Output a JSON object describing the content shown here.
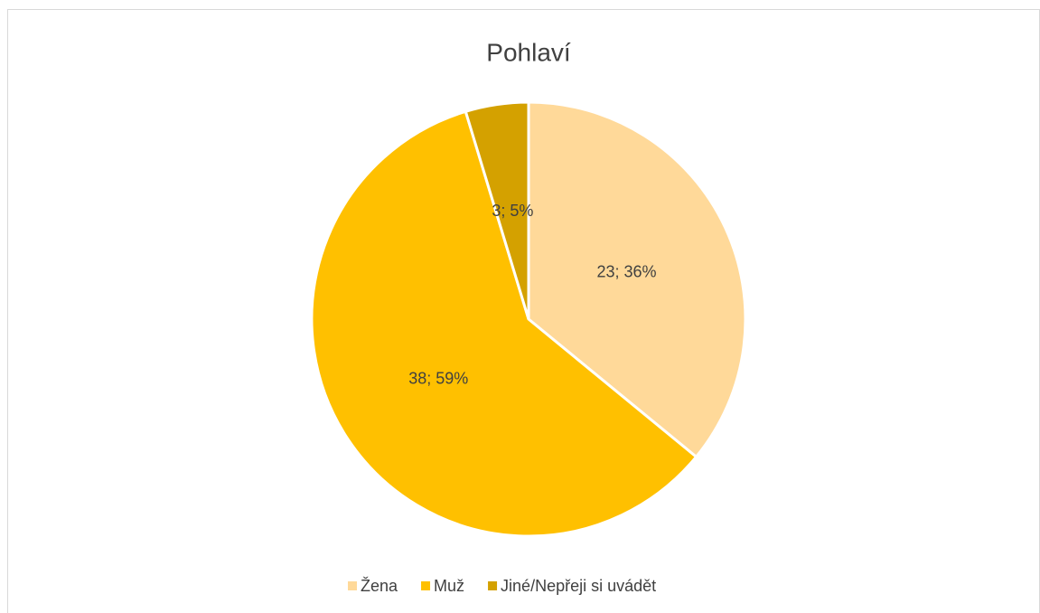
{
  "chart_data": {
    "type": "pie",
    "title": "Pohlaví",
    "categories": [
      "Žena",
      "Muž",
      "Jiné/Nepřeji si uvádět"
    ],
    "values": [
      23,
      38,
      3
    ],
    "value_labels": [
      "23; 36%",
      "38; 59%",
      "3; 5%"
    ],
    "colors": [
      "#FFD999",
      "#FFC000",
      "#D4A100"
    ],
    "legend": "bottom"
  }
}
